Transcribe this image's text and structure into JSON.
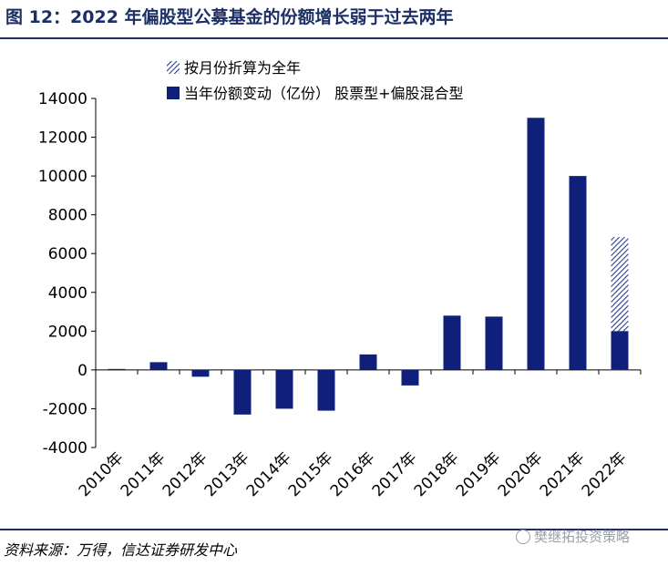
{
  "title": "图 12：2022 年偏股型公募基金的份额增长弱于过去两年",
  "source": "资料来源：万得，信达证券研发中心",
  "watermark": "樊继拓投资策略",
  "colors": {
    "bar": "#10207a",
    "title": "#1c2f66",
    "hatch": "#2d3e8c"
  },
  "chart_data": {
    "type": "bar",
    "categories": [
      "2010年",
      "2011年",
      "2012年",
      "2013年",
      "2014年",
      "2015年",
      "2016年",
      "2017年",
      "2018年",
      "2019年",
      "2020年",
      "2021年",
      "2022年"
    ],
    "series": [
      {
        "name": "当年份额变动（亿份） 股票型+偏股混合型",
        "values": [
          50,
          400,
          -350,
          -2300,
          -2000,
          -2100,
          800,
          -800,
          2800,
          2750,
          13000,
          10000,
          2000
        ]
      },
      {
        "name": "按月份折算为全年",
        "values": [
          null,
          null,
          null,
          null,
          null,
          null,
          null,
          null,
          null,
          null,
          null,
          null,
          6850
        ]
      }
    ],
    "ylim": [
      -4000,
      14000
    ],
    "yticks": [
      -4000,
      -2000,
      0,
      2000,
      4000,
      6000,
      8000,
      10000,
      12000,
      14000
    ],
    "legend_position": "top-center"
  }
}
